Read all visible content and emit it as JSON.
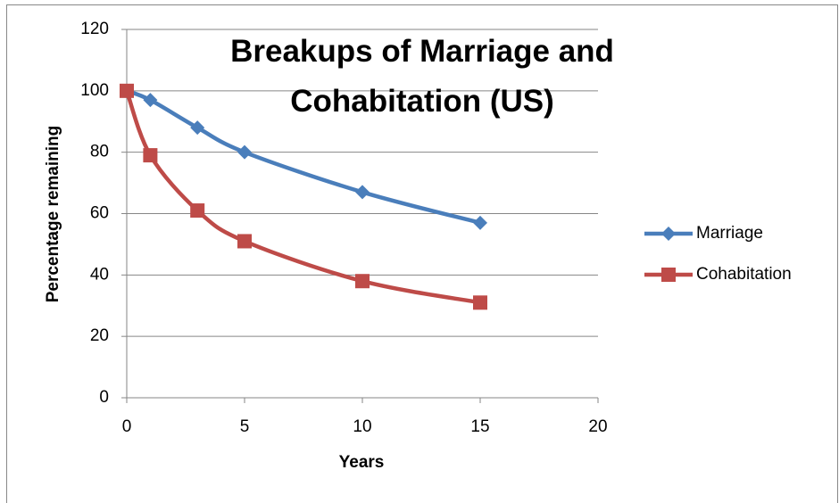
{
  "chart_data": {
    "type": "line",
    "title": "Breakups of Marriage and Cohabitation (US)",
    "x_label": "Years",
    "y_label": "Percentage remaining",
    "x": [
      0,
      1,
      3,
      5,
      10,
      15
    ],
    "series": [
      {
        "name": "Marriage",
        "color": "#4a7ebb",
        "marker": "diamond",
        "values": [
          100,
          97,
          88,
          80,
          67,
          57
        ]
      },
      {
        "name": "Cohabitation",
        "color": "#be4b48",
        "marker": "square",
        "values": [
          100,
          79,
          61,
          51,
          38,
          31
        ]
      }
    ],
    "xlim": [
      0,
      20
    ],
    "xticks": [
      0,
      5,
      10,
      15,
      20
    ],
    "ylim": [
      0,
      120
    ],
    "yticks": [
      0,
      20,
      40,
      60,
      80,
      100,
      120
    ],
    "grid": true,
    "smooth": true,
    "legend": "right"
  }
}
